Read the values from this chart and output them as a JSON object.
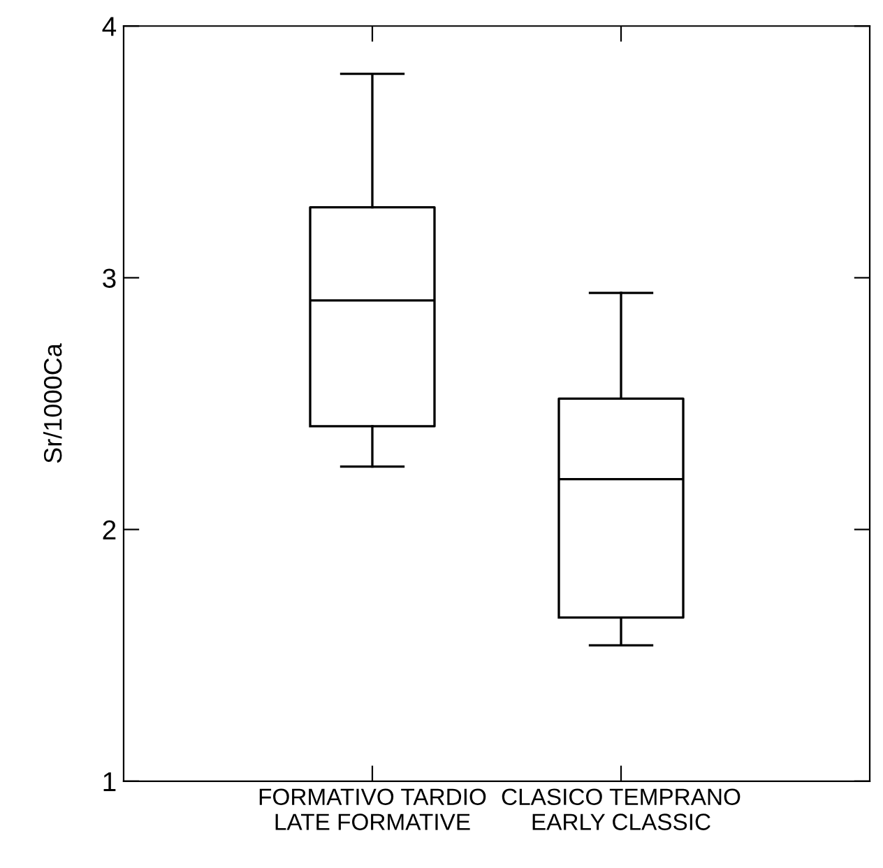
{
  "chart_data": {
    "type": "box",
    "ylabel": "Sr/1000Ca",
    "categories": [
      "FORMATIVO TARDIO\nLATE FORMATIVE",
      "CLASICO TEMPRANO\nEARLY CLASSIC"
    ],
    "boxes": [
      {
        "low": 2.25,
        "q1": 2.41,
        "median": 2.91,
        "q3": 3.28,
        "high": 3.81
      },
      {
        "low": 1.54,
        "q1": 1.65,
        "median": 2.2,
        "q3": 2.52,
        "high": 2.94
      }
    ],
    "ylim": [
      1,
      4
    ],
    "yticks": [
      1,
      2,
      3,
      4
    ],
    "grid": false
  }
}
